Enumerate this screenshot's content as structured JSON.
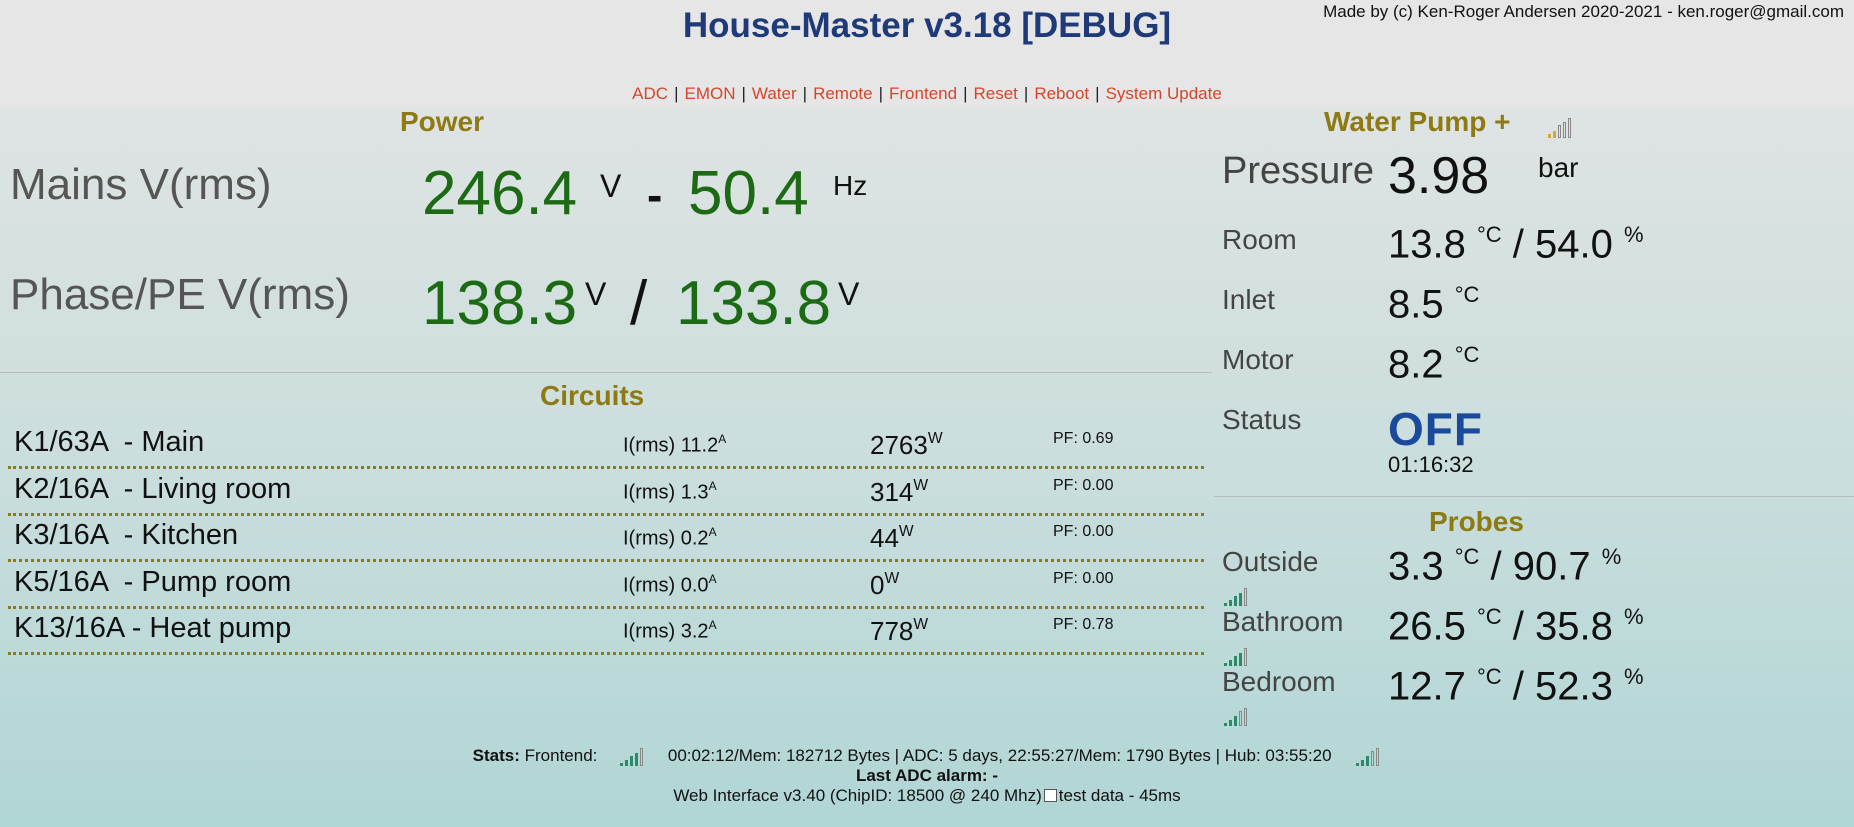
{
  "header": {
    "title": "House-Master v3.18 [DEBUG]",
    "credit": "Made by (c) Ken-Roger Andersen 2020-2021 - ken.roger@gmail.com"
  },
  "nav": [
    "ADC",
    "EMON",
    "Water",
    "Remote",
    "Frontend",
    "Reset",
    "Reboot",
    "System Update"
  ],
  "power": {
    "heading": "Power",
    "mains_label": "Mains V(rms)",
    "mains_v": "246.4",
    "mains_v_unit": "V",
    "mains_dash": "-",
    "mains_hz": "50.4",
    "mains_hz_unit": "Hz",
    "phase_label": "Phase/PE V(rms)",
    "phase1_v": "138.3",
    "phase1_unit": "V",
    "phase_slash": "/",
    "phase2_v": "133.8",
    "phase2_unit": "V"
  },
  "circuits": {
    "heading": "Circuits",
    "rows": [
      {
        "name": "K1/63A  - Main",
        "amp_prefix": "I(rms) 11.2",
        "amp_unit": "A",
        "watts": "2763",
        "watt_unit": "W",
        "pf": "PF: 0.69"
      },
      {
        "name": "K2/16A  - Living room",
        "amp_prefix": "I(rms) 1.3",
        "amp_unit": "A",
        "watts": "314",
        "watt_unit": "W",
        "pf": "PF: 0.00"
      },
      {
        "name": "K3/16A  - Kitchen",
        "amp_prefix": "I(rms) 0.2",
        "amp_unit": "A",
        "watts": "44",
        "watt_unit": "W",
        "pf": "PF: 0.00"
      },
      {
        "name": "K5/16A  - Pump room",
        "amp_prefix": "I(rms) 0.0",
        "amp_unit": "A",
        "watts": "0",
        "watt_unit": "W",
        "pf": "PF: 0.00"
      },
      {
        "name": "K13/16A - Heat pump",
        "amp_prefix": "I(rms) 3.2",
        "amp_unit": "A",
        "watts": "778",
        "watt_unit": "W",
        "pf": "PF: 0.78"
      }
    ]
  },
  "water_pump": {
    "heading": "Water Pump +",
    "signal_level": 2,
    "pressure_label": "Pressure",
    "pressure_value": "3.98",
    "pressure_unit": "bar",
    "room_label": "Room",
    "room_temp": "13.8",
    "room_temp_unit": "°C",
    "room_slash": "/",
    "room_hum": "54.0",
    "room_hum_unit": "%",
    "inlet_label": "Inlet",
    "inlet_temp": "8.5",
    "inlet_unit": "°C",
    "motor_label": "Motor",
    "motor_temp": "8.2",
    "motor_unit": "°C",
    "status_label": "Status",
    "status_value": "OFF",
    "status_time": "01:16:32"
  },
  "probes": {
    "heading": "Probes",
    "items": [
      {
        "label": "Outside",
        "temp": "3.3",
        "temp_unit": "°C",
        "slash": "/",
        "hum": "90.7",
        "hum_unit": "%",
        "signal_level": 4
      },
      {
        "label": "Bathroom",
        "temp": "26.5",
        "temp_unit": "°C",
        "slash": "/",
        "hum": "35.8",
        "hum_unit": "%",
        "signal_level": 4
      },
      {
        "label": "Bedroom",
        "temp": "12.7",
        "temp_unit": "°C",
        "slash": "/",
        "hum": "52.3",
        "hum_unit": "%",
        "signal_level": 3
      }
    ]
  },
  "footer": {
    "stats_label": "Stats:",
    "frontend_label": "Frontend:",
    "frontend_signal": 4,
    "stats_text": "00:02:12/Mem: 182712 Bytes | ADC: 5 days, 22:55:27/Mem: 1790 Bytes | Hub: 03:55:20",
    "hub_signal": 3,
    "alarm_label": "Last ADC alarm:",
    "alarm_value": "-",
    "web_text": "Web Interface v3.40 (ChipID: 18500 @ 240 Mhz)",
    "test_label": "test data - 45ms"
  },
  "colors": {
    "title": "#1f3a78",
    "heading": "#8d7a12",
    "link": "#d6452a",
    "value_green": "#1d6a15",
    "status_blue": "#1b4a9a"
  }
}
